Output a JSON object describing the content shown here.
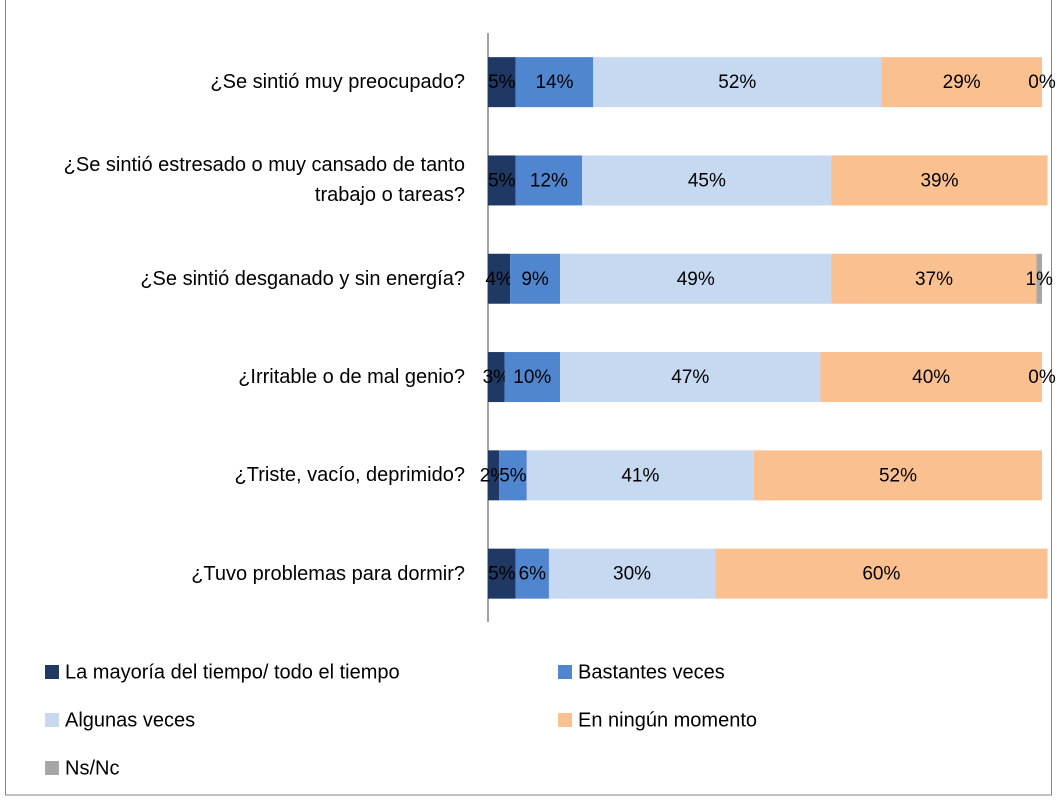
{
  "chart_data": {
    "type": "stacked_barh",
    "categories": [
      "¿Se sintió muy preocupado?",
      "¿Se sintió estresado o muy cansado de tanto trabajo o tareas?",
      "¿Se sintió desganado y sin energía?",
      "¿Irritable o de mal genio?",
      "¿Triste, vacío, deprimido?",
      "¿Tuvo problemas para dormir?"
    ],
    "series": [
      {
        "name": "La mayoría del tiempo/  todo el tiempo",
        "color": "#1f3864",
        "values": [
          5,
          5,
          4,
          3,
          2,
          5
        ],
        "value_labels": [
          "5%",
          "5%",
          "4%",
          "3%",
          "2%",
          "5%"
        ]
      },
      {
        "name": "Bastantes veces",
        "color": "#4f86cf",
        "values": [
          14,
          12,
          9,
          10,
          5,
          6
        ],
        "value_labels": [
          "14%",
          "12%",
          "9%",
          "10%",
          "5%",
          "6%"
        ]
      },
      {
        "name": "Algunas veces",
        "color": "#c6d9f1",
        "values": [
          52,
          45,
          49,
          47,
          41,
          30
        ],
        "value_labels": [
          "52%",
          "45%",
          "49%",
          "47%",
          "41%",
          "30%"
        ]
      },
      {
        "name": "En ningún momento",
        "color": "#fac090",
        "values": [
          29,
          39,
          37,
          40,
          52,
          60
        ],
        "value_labels": [
          "29%",
          "39%",
          "37%",
          "40%",
          "52%",
          "60%"
        ]
      },
      {
        "name": "Ns/Nc",
        "color": "#a6a6a6",
        "values": [
          0,
          null,
          1,
          0,
          null,
          null
        ],
        "value_labels": [
          "0%",
          null,
          "1%",
          "0%",
          null,
          null
        ]
      }
    ],
    "xlim": [
      0,
      100
    ]
  }
}
